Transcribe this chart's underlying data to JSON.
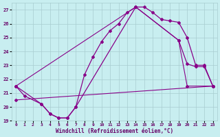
{
  "xlabel": "Windchill (Refroidissement éolien,°C)",
  "bg_color": "#c8eef0",
  "grid_color": "#a8ccd0",
  "line_color": "#880088",
  "text_color": "#660066",
  "xlim": [
    -0.5,
    23.5
  ],
  "ylim": [
    19,
    27.5
  ],
  "xticks": [
    0,
    1,
    2,
    3,
    4,
    5,
    6,
    7,
    8,
    9,
    10,
    11,
    12,
    13,
    14,
    15,
    16,
    17,
    18,
    19,
    20,
    21,
    22,
    23
  ],
  "yticks": [
    19,
    20,
    21,
    22,
    23,
    24,
    25,
    26,
    27
  ],
  "curve1_x": [
    0,
    1,
    3,
    4,
    5,
    6,
    7,
    8,
    9,
    10,
    11,
    12,
    13,
    14,
    15,
    16,
    17,
    18,
    19,
    20,
    21,
    22,
    23
  ],
  "curve1_y": [
    21.5,
    20.8,
    20.2,
    19.5,
    19.2,
    19.2,
    20.0,
    22.3,
    23.6,
    24.7,
    25.5,
    26.0,
    26.8,
    27.2,
    27.2,
    26.8,
    26.3,
    26.2,
    26.1,
    25.0,
    23.0,
    23.0,
    21.5
  ],
  "curve2_x": [
    0,
    3,
    4,
    5,
    6,
    7,
    14,
    19,
    20,
    21,
    22,
    23
  ],
  "curve2_y": [
    21.5,
    20.2,
    19.5,
    19.2,
    19.2,
    20.0,
    27.2,
    24.8,
    23.1,
    22.9,
    22.9,
    21.5
  ],
  "curve3_x": [
    0,
    23
  ],
  "curve3_y": [
    20.5,
    21.5
  ],
  "curve4_x": [
    0,
    14,
    19,
    20,
    23
  ],
  "curve4_y": [
    21.5,
    27.2,
    24.8,
    21.5,
    21.5
  ]
}
